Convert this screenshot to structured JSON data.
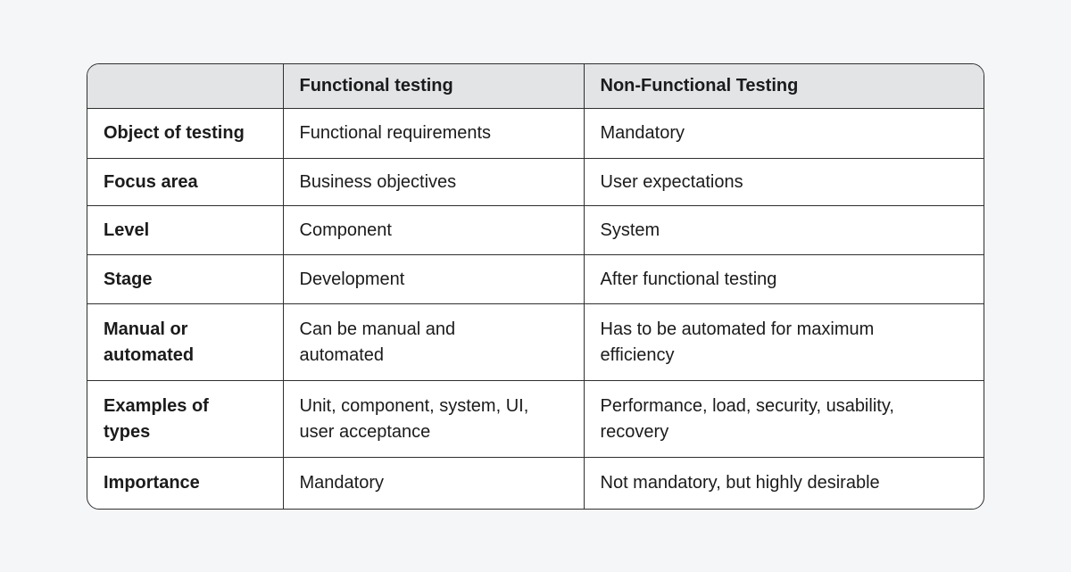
{
  "table": {
    "header": [
      "Functional testing",
      "Non-Functional Testing"
    ],
    "rows": [
      [
        "Object of testing",
        "Functional requirements",
        "Mandatory"
      ],
      [
        "Focus area",
        "Business objectives",
        "User expectations"
      ],
      [
        "Level",
        "Component",
        "System"
      ],
      [
        "Stage",
        "Development",
        "After functional testing"
      ],
      [
        "Manual or\nautomated",
        "Can be manual and\nautomated",
        "Has to be automated for maximum\nefficiency"
      ],
      [
        "Examples of\ntypes",
        "Unit, component, system, UI,\nuser acceptance",
        "Performance, load, security, usability,\nrecovery"
      ],
      [
        "Importance",
        "Mandatory",
        "Not mandatory, but highly desirable"
      ]
    ]
  }
}
